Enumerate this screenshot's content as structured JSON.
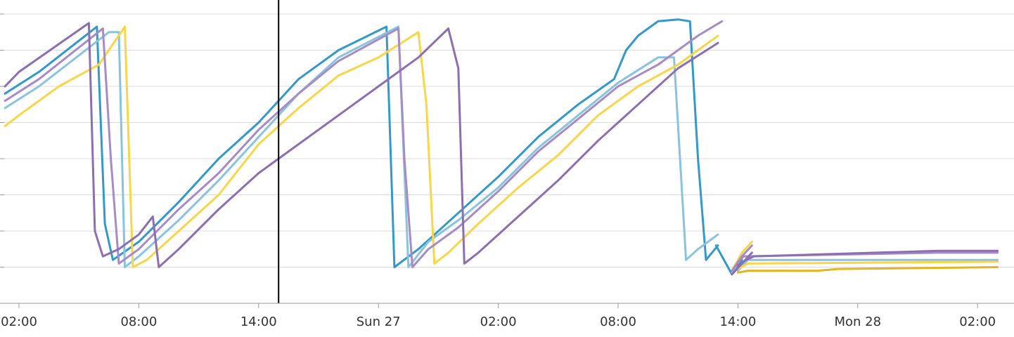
{
  "chart_data": {
    "type": "line",
    "title": "",
    "xlabel": "",
    "ylabel": "",
    "x_unit": "hours",
    "x_range": [
      0,
      49
    ],
    "ylim": [
      0,
      8
    ],
    "grid": true,
    "legend": "none",
    "cursor_x": 15,
    "x_ticks": [
      {
        "x": 2,
        "label": "02:00"
      },
      {
        "x": 8,
        "label": "08:00"
      },
      {
        "x": 14,
        "label": "14:00"
      },
      {
        "x": 20,
        "label": "Sun 27"
      },
      {
        "x": 26,
        "label": "02:00"
      },
      {
        "x": 32,
        "label": "08:00"
      },
      {
        "x": 38,
        "label": "14:00"
      },
      {
        "x": 44,
        "label": "Mon 28"
      },
      {
        "x": 50,
        "label": "02:00"
      }
    ],
    "series": [
      {
        "color": "#3399c8",
        "segments": [
          [
            [
              1.3,
              5.8
            ],
            [
              3,
              6.4
            ],
            [
              5.9,
              7.65
            ],
            [
              6.3,
              2.2
            ],
            [
              6.7,
              1.2
            ],
            [
              8,
              1.7
            ],
            [
              10,
              2.8
            ],
            [
              12,
              4.0
            ],
            [
              14,
              5.0
            ],
            [
              16,
              6.2
            ],
            [
              18,
              7.0
            ],
            [
              20.4,
              7.65
            ],
            [
              20.8,
              1.0
            ],
            [
              22,
              1.5
            ],
            [
              24,
              2.5
            ],
            [
              26,
              3.5
            ],
            [
              28,
              4.6
            ],
            [
              30,
              5.5
            ],
            [
              31.8,
              6.2
            ],
            [
              32.4,
              7.0
            ],
            [
              33,
              7.4
            ],
            [
              34,
              7.8
            ],
            [
              35,
              7.85
            ],
            [
              35.6,
              7.8
            ],
            [
              36.0,
              4.0
            ],
            [
              36.4,
              1.2
            ],
            [
              37,
              1.6
            ]
          ],
          [
            [
              36.9,
              1.6
            ],
            [
              37.7,
              0.8
            ],
            [
              38.2,
              1.2
            ]
          ]
        ]
      },
      {
        "color": "#8ac3dd",
        "segments": [
          [
            [
              1.3,
              5.4
            ],
            [
              3,
              6.0
            ],
            [
              6.5,
              7.5
            ],
            [
              7.0,
              7.5
            ],
            [
              7.3,
              1.0
            ],
            [
              8,
              1.3
            ],
            [
              10,
              2.3
            ],
            [
              12,
              3.4
            ],
            [
              14,
              4.6
            ],
            [
              16,
              5.8
            ],
            [
              18,
              6.8
            ],
            [
              21,
              7.65
            ],
            [
              21.5,
              1.0
            ],
            [
              22.5,
              1.7
            ],
            [
              24,
              2.3
            ],
            [
              26,
              3.2
            ],
            [
              28,
              4.3
            ],
            [
              30,
              5.2
            ],
            [
              32,
              6.1
            ],
            [
              34,
              6.8
            ],
            [
              34.8,
              6.8
            ],
            [
              35.4,
              1.2
            ],
            [
              36,
              1.5
            ],
            [
              37,
              1.9
            ]
          ],
          [
            [
              37.7,
              0.85
            ],
            [
              38.2,
              1.3
            ]
          ],
          [
            [
              38.0,
              0.9
            ],
            [
              38.5,
              1.2
            ],
            [
              48.3,
              1.2
            ],
            [
              51,
              1.2
            ]
          ]
        ]
      },
      {
        "color": "#f9d648",
        "segments": [
          [
            [
              1.3,
              4.9
            ],
            [
              2,
              5.2
            ],
            [
              4,
              6.0
            ],
            [
              6,
              6.6
            ],
            [
              7.3,
              7.65
            ],
            [
              7.7,
              1.0
            ],
            [
              8.4,
              1.2
            ],
            [
              10,
              2.0
            ],
            [
              12,
              3.0
            ],
            [
              14,
              4.4
            ],
            [
              16,
              5.4
            ],
            [
              18,
              6.3
            ],
            [
              20,
              6.8
            ],
            [
              22,
              7.5
            ],
            [
              22.4,
              5.5
            ],
            [
              22.8,
              1.1
            ],
            [
              23.5,
              1.4
            ],
            [
              25,
              2.2
            ],
            [
              27,
              3.2
            ],
            [
              29,
              4.1
            ],
            [
              31,
              5.2
            ],
            [
              33,
              6.0
            ],
            [
              35,
              6.6
            ],
            [
              37,
              7.4
            ]
          ],
          [
            [
              37.7,
              0.9
            ],
            [
              38.2,
              1.4
            ],
            [
              38.7,
              1.7
            ]
          ],
          [
            [
              38.0,
              0.95
            ],
            [
              38.5,
              1.1
            ],
            [
              51,
              1.15
            ]
          ]
        ]
      },
      {
        "color": "#e6b422",
        "segments": [
          [
            [
              38.0,
              0.85
            ],
            [
              38.5,
              0.9
            ],
            [
              42,
              0.9
            ],
            [
              43,
              0.95
            ],
            [
              51,
              1.0
            ]
          ]
        ]
      },
      {
        "color": "#a68bc7",
        "segments": [
          [
            [
              1.3,
              5.6
            ],
            [
              3,
              6.2
            ],
            [
              6.2,
              7.6
            ],
            [
              6.6,
              4.0
            ],
            [
              7.0,
              1.1
            ],
            [
              8,
              1.5
            ],
            [
              10,
              2.6
            ],
            [
              12,
              3.6
            ],
            [
              14,
              4.8
            ],
            [
              16,
              5.8
            ],
            [
              18,
              6.7
            ],
            [
              21,
              7.6
            ],
            [
              21.3,
              4.0
            ],
            [
              21.7,
              1.0
            ],
            [
              22.5,
              1.5
            ],
            [
              24,
              2.1
            ],
            [
              26,
              3.1
            ],
            [
              28,
              4.2
            ],
            [
              30,
              5.1
            ],
            [
              32,
              6.0
            ],
            [
              34,
              6.6
            ],
            [
              36,
              7.4
            ],
            [
              37.2,
              7.8
            ]
          ],
          [
            [
              37.7,
              0.9
            ],
            [
              38.2,
              1.3
            ],
            [
              38.7,
              1.6
            ]
          ],
          [
            [
              38.0,
              1.15
            ],
            [
              38.3,
              1.3
            ],
            [
              48,
              1.4
            ],
            [
              51,
              1.4
            ]
          ]
        ]
      },
      {
        "color": "#8d6fb1",
        "segments": [
          [
            [
              1.3,
              6.0
            ],
            [
              2,
              6.4
            ],
            [
              5.5,
              7.75
            ],
            [
              5.8,
              2.0
            ],
            [
              6.2,
              1.3
            ],
            [
              7,
              1.5
            ],
            [
              8,
              1.9
            ],
            [
              8.7,
              2.4
            ],
            [
              9.0,
              1.0
            ],
            [
              10,
              1.5
            ],
            [
              12,
              2.6
            ],
            [
              14,
              3.6
            ],
            [
              15,
              4.0
            ],
            [
              16,
              4.4
            ],
            [
              18,
              5.2
            ],
            [
              20,
              6.0
            ],
            [
              22,
              6.8
            ],
            [
              23.5,
              7.6
            ],
            [
              24.0,
              6.5
            ],
            [
              24.3,
              1.1
            ],
            [
              25,
              1.4
            ],
            [
              27,
              2.4
            ],
            [
              29,
              3.4
            ],
            [
              31,
              4.5
            ],
            [
              33,
              5.5
            ],
            [
              35,
              6.5
            ],
            [
              37,
              7.2
            ]
          ],
          [
            [
              37.7,
              0.8
            ],
            [
              38.2,
              1.1
            ],
            [
              38.7,
              1.4
            ]
          ],
          [
            [
              38.0,
              1.05
            ],
            [
              38.4,
              1.2
            ],
            [
              38.8,
              1.3
            ],
            [
              48,
              1.45
            ],
            [
              51,
              1.45
            ]
          ]
        ]
      }
    ]
  }
}
